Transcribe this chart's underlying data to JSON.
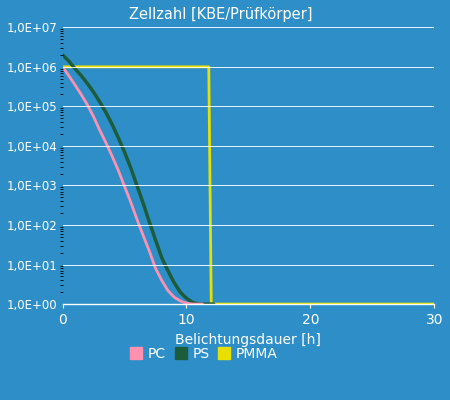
{
  "title": "Zellzahl [KBE/Prüfkörper]",
  "xlabel": "Belichtungsdauer [h]",
  "background_color": "#2e8fc8",
  "plot_bg_color": "#2e8fc8",
  "grid_color": "#ffffff",
  "text_color": "#ffffff",
  "xlim": [
    0,
    30
  ],
  "xticks": [
    0,
    10,
    20,
    30
  ],
  "series": {
    "PC": {
      "color": "#ff91b0",
      "x": [
        0,
        0.5,
        1,
        1.5,
        2,
        2.5,
        3,
        3.5,
        4,
        4.5,
        5,
        5.5,
        6,
        6.5,
        7,
        7.5,
        8,
        8.5,
        9,
        9.5,
        10,
        10.5,
        11,
        11.3
      ],
      "y": [
        1000000.0,
        600000.0,
        350000.0,
        200000.0,
        110000.0,
        55000.0,
        25000.0,
        12000.0,
        5500,
        2400,
        950,
        380,
        140,
        55,
        22,
        8,
        4,
        2.2,
        1.5,
        1.2,
        1.05,
        1.0,
        1.0,
        1.0
      ]
    },
    "PS": {
      "color": "#1d5c3a",
      "x": [
        0,
        0.5,
        1,
        1.5,
        2,
        2.5,
        3,
        3.5,
        4,
        4.5,
        5,
        5.5,
        6,
        6.5,
        7,
        7.5,
        8,
        8.5,
        9,
        9.5,
        10,
        10.5,
        11,
        11.5,
        12,
        12.2
      ],
      "y": [
        2000000.0,
        1400000.0,
        900000.0,
        600000.0,
        380000.0,
        230000.0,
        130000.0,
        70000.0,
        35000.0,
        16000.0,
        7000,
        2800,
        1000,
        360,
        120,
        42,
        15,
        7,
        3.5,
        2,
        1.4,
        1.1,
        1.0,
        1.0,
        1.0,
        1.0
      ]
    },
    "PMMA": {
      "color": "#e8e000",
      "x": [
        0,
        11.8,
        12,
        12.5,
        30
      ],
      "y": [
        1000000.0,
        1000000.0,
        1.0,
        1.0,
        1.0
      ]
    }
  },
  "legend_labels": [
    "PC",
    "PS",
    "PMMA"
  ],
  "ytick_labels": [
    "1,0E+00",
    "1,0E+01",
    "1,0E+02",
    "1,0E+03",
    "1,0E+04",
    "1,0E+05",
    "1,0E+06",
    "1,0E+07"
  ]
}
